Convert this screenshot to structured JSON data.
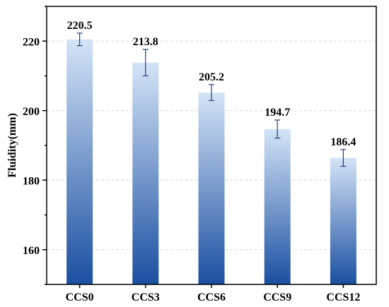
{
  "chart_data": {
    "type": "bar",
    "categories": [
      "CCS0",
      "CCS3",
      "CCS6",
      "CCS9",
      "CCS12"
    ],
    "values": [
      220.5,
      213.8,
      205.2,
      194.7,
      186.4
    ],
    "errors": [
      1.8,
      3.8,
      2.3,
      2.6,
      2.4
    ],
    "value_labels": [
      "220.5",
      "213.8",
      "205.2",
      "194.7",
      "186.4"
    ],
    "title": "",
    "xlabel": "",
    "ylabel": "Fluidity(mm)",
    "ylim": [
      150,
      230
    ],
    "yticks": [
      160,
      180,
      200,
      220
    ],
    "ytick_labels": [
      "160",
      "180",
      "200",
      "220"
    ],
    "grid": "horizontal dashed",
    "colors": {
      "bar_top": "#d4e4f7",
      "bar_bottom": "#1a4fa0",
      "error_bar": "#1f3f7a",
      "grid": "#d8d8d8",
      "axis": "#000000"
    }
  }
}
